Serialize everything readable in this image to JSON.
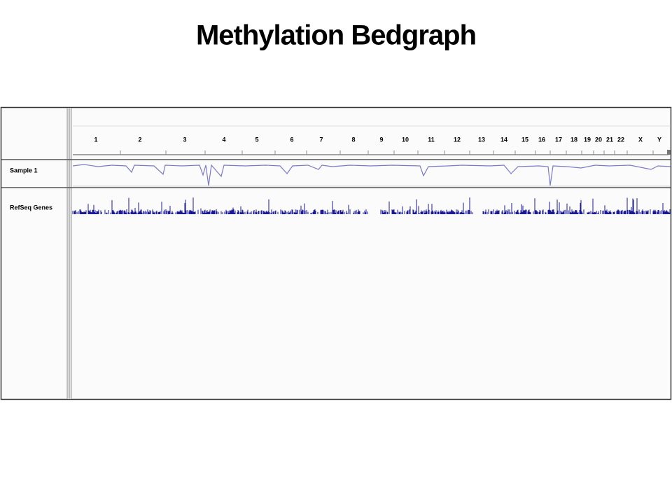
{
  "title": "Methylation Bedgraph",
  "ruler": {
    "chromosomes": [
      "1",
      "2",
      "3",
      "4",
      "5",
      "6",
      "7",
      "8",
      "9",
      "10",
      "11",
      "12",
      "13",
      "14",
      "15",
      "16",
      "17",
      "18",
      "19",
      "20",
      "21",
      "22",
      "X",
      "Y"
    ]
  },
  "tracks": [
    {
      "name": "Sample 1"
    },
    {
      "name": "RefSeq Genes"
    }
  ]
}
